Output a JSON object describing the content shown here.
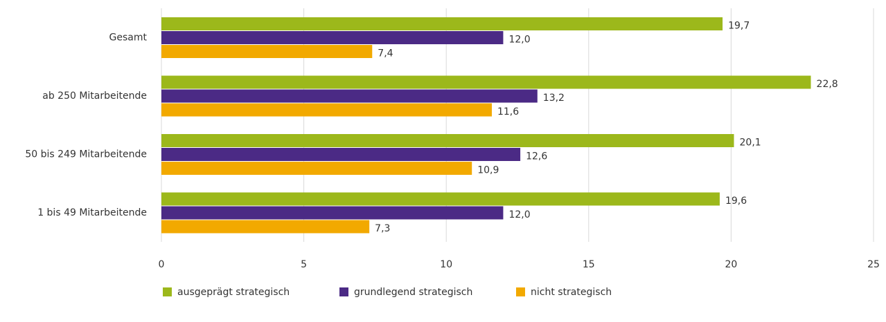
{
  "chart_data": {
    "type": "bar",
    "orientation": "horizontal",
    "categories": [
      "Gesamt",
      "ab 250 Mitarbeitende",
      "50 bis 249 Mitarbeitende",
      "1 bis 49 Mitarbeitende"
    ],
    "series": [
      {
        "name": "ausgeprägt strategisch",
        "color": "#9cb81b",
        "values": [
          19.7,
          22.8,
          20.1,
          19.6
        ],
        "value_labels": [
          "19,7",
          "22,8",
          "20,1",
          "19,6"
        ]
      },
      {
        "name": "grundlegend strategisch",
        "color": "#4b2a85",
        "values": [
          12.0,
          13.2,
          12.6,
          12.0
        ],
        "value_labels": [
          "12,0",
          "13,2",
          "12,6",
          "12,0"
        ]
      },
      {
        "name": "nicht strategisch",
        "color": "#f2a900",
        "values": [
          7.4,
          11.6,
          10.9,
          7.3
        ],
        "value_labels": [
          "7,4",
          "11,6",
          "10,9",
          "7,3"
        ]
      }
    ],
    "xlim": [
      0,
      25
    ],
    "xticks": [
      0,
      5,
      10,
      15,
      20,
      25
    ],
    "grid": true,
    "legend": "bottom"
  }
}
